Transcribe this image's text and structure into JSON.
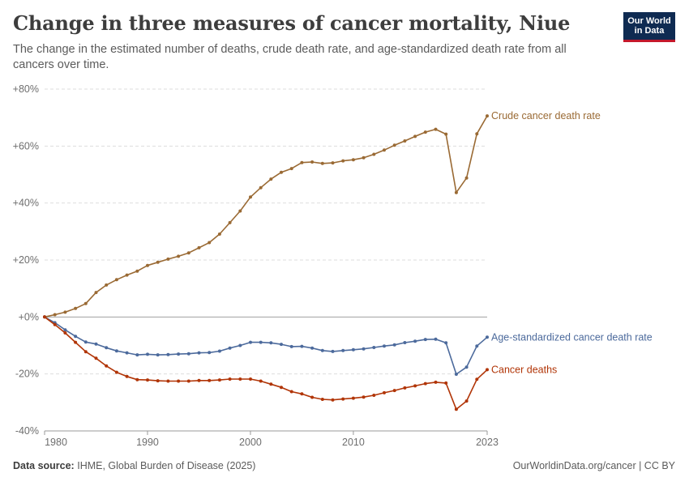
{
  "header": {
    "title": "Change in three measures of cancer mortality, Niue",
    "subtitle": "The change in the estimated number of deaths, crude death rate, and age-standardized death rate from all cancers over time.",
    "logo_line1": "Our World",
    "logo_line2": "in Data"
  },
  "footer": {
    "source_label": "Data source:",
    "source_text": "IHME, Global Burden of Disease (2025)",
    "credit": "OurWorldinData.org/cancer | CC BY"
  },
  "colors": {
    "crude": "#9a6a34",
    "age_standardized": "#4c6a9c",
    "deaths": "#b13507",
    "grid": "#dddddd",
    "zero_line": "#a0a0a0"
  },
  "chart_data": {
    "type": "line",
    "title": "Change in three measures of cancer mortality, Niue",
    "y_unit": "percent change",
    "ylim": [
      -40,
      80
    ],
    "y_ticks": [
      -40,
      -20,
      0,
      20,
      40,
      60,
      80
    ],
    "y_tick_labels": [
      "-40%",
      "-20%",
      "+0%",
      "+20%",
      "+40%",
      "+60%",
      "+80%"
    ],
    "x_ticks": [
      1980,
      1990,
      2000,
      2010,
      2023
    ],
    "x_tick_labels": [
      "1980",
      "1990",
      "2000",
      "2010",
      "2023"
    ],
    "xlim": [
      1980,
      2023
    ],
    "grid": "horizontal dashed",
    "legend": "line-end labels",
    "x": [
      1980,
      1981,
      1982,
      1983,
      1984,
      1985,
      1986,
      1987,
      1988,
      1989,
      1990,
      1991,
      1992,
      1993,
      1994,
      1995,
      1996,
      1997,
      1998,
      1999,
      2000,
      2001,
      2002,
      2003,
      2004,
      2005,
      2006,
      2007,
      2008,
      2009,
      2010,
      2011,
      2012,
      2013,
      2014,
      2015,
      2016,
      2017,
      2018,
      2019,
      2020,
      2021,
      2022,
      2023
    ],
    "series": [
      {
        "name": "Crude cancer death rate",
        "color_key": "crude",
        "values": [
          0,
          0.8,
          1.7,
          3,
          4.7,
          8.6,
          11.2,
          13.1,
          14.7,
          16.1,
          18.1,
          19.2,
          20.3,
          21.3,
          22.5,
          24.3,
          26.1,
          29.1,
          33.1,
          37.2,
          42.1,
          45.4,
          48.4,
          50.8,
          52.1,
          54.2,
          54.4,
          53.9,
          54.1,
          54.8,
          55.2,
          55.9,
          57.1,
          58.6,
          60.3,
          61.8,
          63.4,
          64.9,
          65.9,
          64.2,
          43.7,
          48.8,
          64.3,
          70.6
        ]
      },
      {
        "name": "Age-standardized cancer death rate",
        "color_key": "age_standardized",
        "values": [
          0,
          -2,
          -4.5,
          -6.8,
          -8.8,
          -9.5,
          -10.8,
          -11.9,
          -12.6,
          -13.3,
          -13.1,
          -13.3,
          -13.2,
          -13,
          -12.9,
          -12.6,
          -12.5,
          -12,
          -10.9,
          -10,
          -8.9,
          -8.9,
          -9.1,
          -9.6,
          -10.4,
          -10.3,
          -10.9,
          -11.8,
          -12.1,
          -11.8,
          -11.5,
          -11.2,
          -10.7,
          -10.2,
          -9.8,
          -9,
          -8.5,
          -7.9,
          -7.8,
          -9.1,
          -20.1,
          -17.6,
          -10.2,
          -7.1
        ]
      },
      {
        "name": "Cancer deaths",
        "color_key": "deaths",
        "values": [
          0,
          -2.7,
          -5.6,
          -8.9,
          -12.2,
          -14.5,
          -17.2,
          -19.4,
          -20.9,
          -22,
          -22.1,
          -22.4,
          -22.5,
          -22.5,
          -22.5,
          -22.3,
          -22.3,
          -22.1,
          -21.8,
          -21.8,
          -21.8,
          -22.5,
          -23.6,
          -24.7,
          -26.2,
          -27,
          -28.2,
          -28.9,
          -29.1,
          -28.8,
          -28.5,
          -28.1,
          -27.5,
          -26.6,
          -25.8,
          -24.9,
          -24.2,
          -23.4,
          -22.9,
          -23.2,
          -32.4,
          -29.5,
          -21.9,
          -18.5
        ]
      }
    ]
  }
}
